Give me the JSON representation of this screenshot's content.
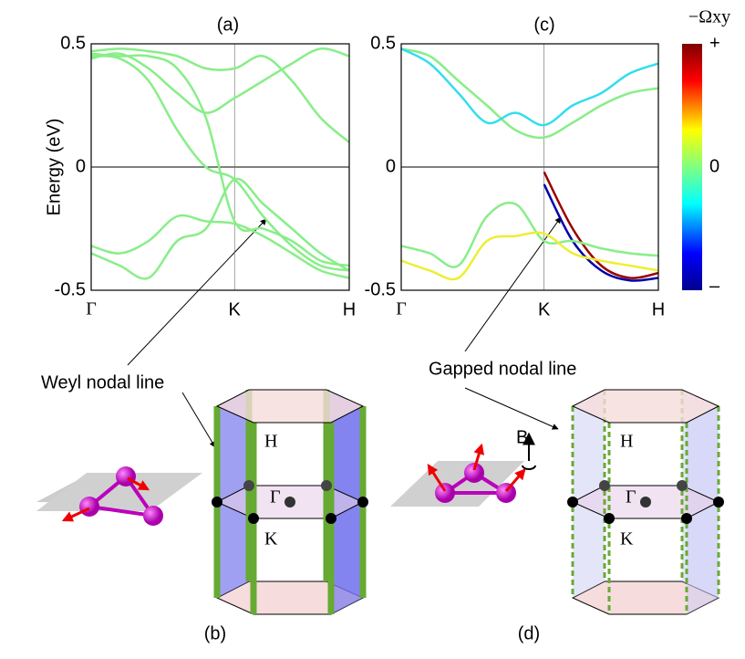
{
  "chart_data": [
    {
      "type": "line",
      "panel_label": "(a)",
      "y_label": "Energy (eV)",
      "x": [
        0,
        0.2,
        0.4,
        0.6,
        0.8,
        1,
        1.2,
        1.4,
        1.6,
        1.8
      ],
      "xlim": [
        0,
        1.8
      ],
      "xticks": [
        {
          "value": 0,
          "label": "Γ"
        },
        {
          "value": 1,
          "label": "K"
        },
        {
          "value": 1.8,
          "label": "H"
        }
      ],
      "ylim": [
        -0.5,
        0.5
      ],
      "yticks": [
        0.5,
        0,
        -0.5
      ],
      "series": [
        {
          "color": "#88ee88",
          "values": [
            0.45,
            0.44,
            0.35,
            0.15,
            0.0,
            -0.05,
            -0.2,
            -0.32,
            -0.4,
            -0.42
          ]
        },
        {
          "color": "#88ee88",
          "values": [
            0.46,
            0.45,
            0.45,
            0.4,
            0.2,
            -0.22,
            -0.25,
            -0.3,
            -0.38,
            -0.4
          ]
        },
        {
          "color": "#88ee88",
          "values": [
            -0.32,
            -0.35,
            -0.3,
            -0.2,
            -0.22,
            -0.23,
            -0.28,
            -0.35,
            -0.42,
            -0.45
          ]
        },
        {
          "color": "#88ee88",
          "values": [
            -0.35,
            -0.4,
            -0.45,
            -0.3,
            -0.25,
            -0.05,
            -0.15,
            -0.25,
            -0.35,
            -0.42
          ]
        },
        {
          "color": "#88ee88",
          "values": [
            0.44,
            0.46,
            0.4,
            0.3,
            0.22,
            0.28,
            0.35,
            0.42,
            0.48,
            0.45
          ]
        },
        {
          "color": "#88ee88",
          "values": [
            0.47,
            0.48,
            0.47,
            0.45,
            0.4,
            0.4,
            0.45,
            0.35,
            0.2,
            0.1
          ]
        }
      ]
    },
    {
      "type": "line",
      "panel_label": "(c)",
      "x": [
        0,
        0.2,
        0.4,
        0.6,
        0.8,
        1,
        1.2,
        1.4,
        1.6,
        1.8
      ],
      "xlim": [
        0,
        1.8
      ],
      "xticks": [
        {
          "value": 0,
          "label": "Γ"
        },
        {
          "value": 1,
          "label": "K"
        },
        {
          "value": 1.8,
          "label": "H"
        }
      ],
      "ylim": [
        -0.5,
        0.5
      ],
      "yticks": [
        0.5,
        0,
        -0.5
      ],
      "colorbar": {
        "label": "−Ωxy",
        "ticks": [
          "+",
          "0",
          "–"
        ]
      },
      "series": [
        {
          "color": "#88ee88",
          "values": [
            0.48,
            0.45,
            0.35,
            0.25,
            0.15,
            0.12,
            0.18,
            0.25,
            0.3,
            0.32
          ]
        },
        {
          "color": "#33ddee",
          "values": [
            0.48,
            0.42,
            0.3,
            0.18,
            0.22,
            0.17,
            0.25,
            0.3,
            0.38,
            0.42
          ]
        },
        {
          "color": "#990000",
          "values": [
            null,
            null,
            null,
            null,
            null,
            -0.02,
            -0.25,
            -0.4,
            -0.45,
            -0.43
          ]
        },
        {
          "color": "#0000aa",
          "values": [
            null,
            null,
            null,
            null,
            null,
            -0.07,
            -0.3,
            -0.42,
            -0.46,
            -0.45
          ]
        },
        {
          "color": "#88ee88",
          "values": [
            -0.32,
            -0.35,
            -0.4,
            -0.2,
            -0.15,
            -0.3,
            -0.3,
            -0.33,
            -0.35,
            -0.36
          ]
        },
        {
          "color": "#eeee33",
          "values": [
            -0.38,
            -0.42,
            -0.45,
            -0.3,
            -0.28,
            -0.27,
            -0.35,
            -0.38,
            -0.4,
            -0.42
          ]
        }
      ]
    }
  ],
  "annotations": {
    "left": "Weyl nodal line",
    "right": "Gapped nodal line",
    "panel_b": "(b)",
    "panel_d": "(d)",
    "point_h": "H",
    "point_gamma": "Γ",
    "point_k": "K",
    "field": "B"
  }
}
